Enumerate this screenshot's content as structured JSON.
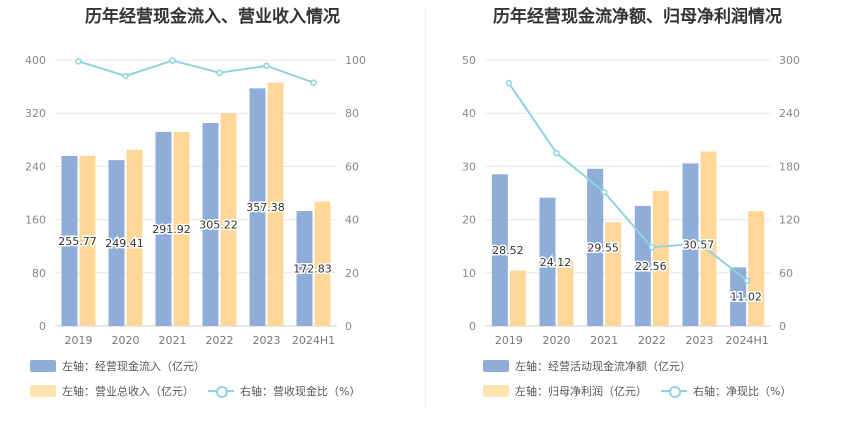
{
  "colors": {
    "bar1": "#8eadd9",
    "bar2": "#ffd899",
    "line": "#8fd3dc"
  },
  "chart_data": [
    {
      "type": "bar",
      "title": "历年经营现金流入、营业收入情况",
      "categories": [
        "2019",
        "2020",
        "2021",
        "2022",
        "2023",
        "2024H1"
      ],
      "left_axis": {
        "ylim": [
          0,
          400
        ],
        "ticks": [
          "0",
          "80",
          "160",
          "240",
          "320",
          "400"
        ]
      },
      "right_axis": {
        "ylim": [
          0,
          100
        ],
        "ticks": [
          "0",
          "20",
          "40",
          "60",
          "80",
          "100"
        ]
      },
      "series": [
        {
          "name": "左轴：经营现金流入（亿元）",
          "type": "bar",
          "axis": "left",
          "values": [
            255.77,
            249.41,
            291.92,
            305.22,
            357.38,
            172.83
          ],
          "labels": [
            "255.77",
            "249.41",
            "291.92",
            "305.22",
            "357.38",
            "172.83"
          ]
        },
        {
          "name": "左轴：营业总收入（亿元）",
          "type": "bar",
          "axis": "left",
          "values": [
            256,
            265,
            292,
            320,
            366,
            187
          ]
        },
        {
          "name": "右轴：营收现金比（%）",
          "type": "line",
          "axis": "right",
          "values": [
            99.5,
            94,
            99.8,
            95.2,
            97.8,
            91.5
          ]
        }
      ],
      "legend_position": "bottom"
    },
    {
      "type": "bar",
      "title": "历年经营现金流净额、归母净利润情况",
      "categories": [
        "2019",
        "2020",
        "2021",
        "2022",
        "2023",
        "2024H1"
      ],
      "left_axis": {
        "ylim": [
          0,
          50
        ],
        "ticks": [
          "0",
          "10",
          "20",
          "30",
          "40",
          "50"
        ]
      },
      "right_axis": {
        "ylim": [
          0,
          300
        ],
        "ticks": [
          "0",
          "60",
          "120",
          "180",
          "240",
          "300"
        ]
      },
      "series": [
        {
          "name": "左轴：经营活动现金流净额（亿元）",
          "type": "bar",
          "axis": "left",
          "values": [
            28.52,
            24.12,
            29.55,
            22.56,
            30.57,
            11.02
          ],
          "labels": [
            "28.52",
            "24.12",
            "29.55",
            "22.56",
            "30.57",
            "11.02"
          ]
        },
        {
          "name": "左轴：归母净利润（亿元）",
          "type": "bar",
          "axis": "left",
          "values": [
            10.4,
            12.3,
            19.5,
            25.4,
            32.8,
            21.6
          ]
        },
        {
          "name": "右轴：净现比（%）",
          "type": "line",
          "axis": "right",
          "values": [
            274,
            195,
            151,
            88.7,
            93.2,
            51
          ]
        }
      ],
      "legend_position": "bottom"
    }
  ]
}
